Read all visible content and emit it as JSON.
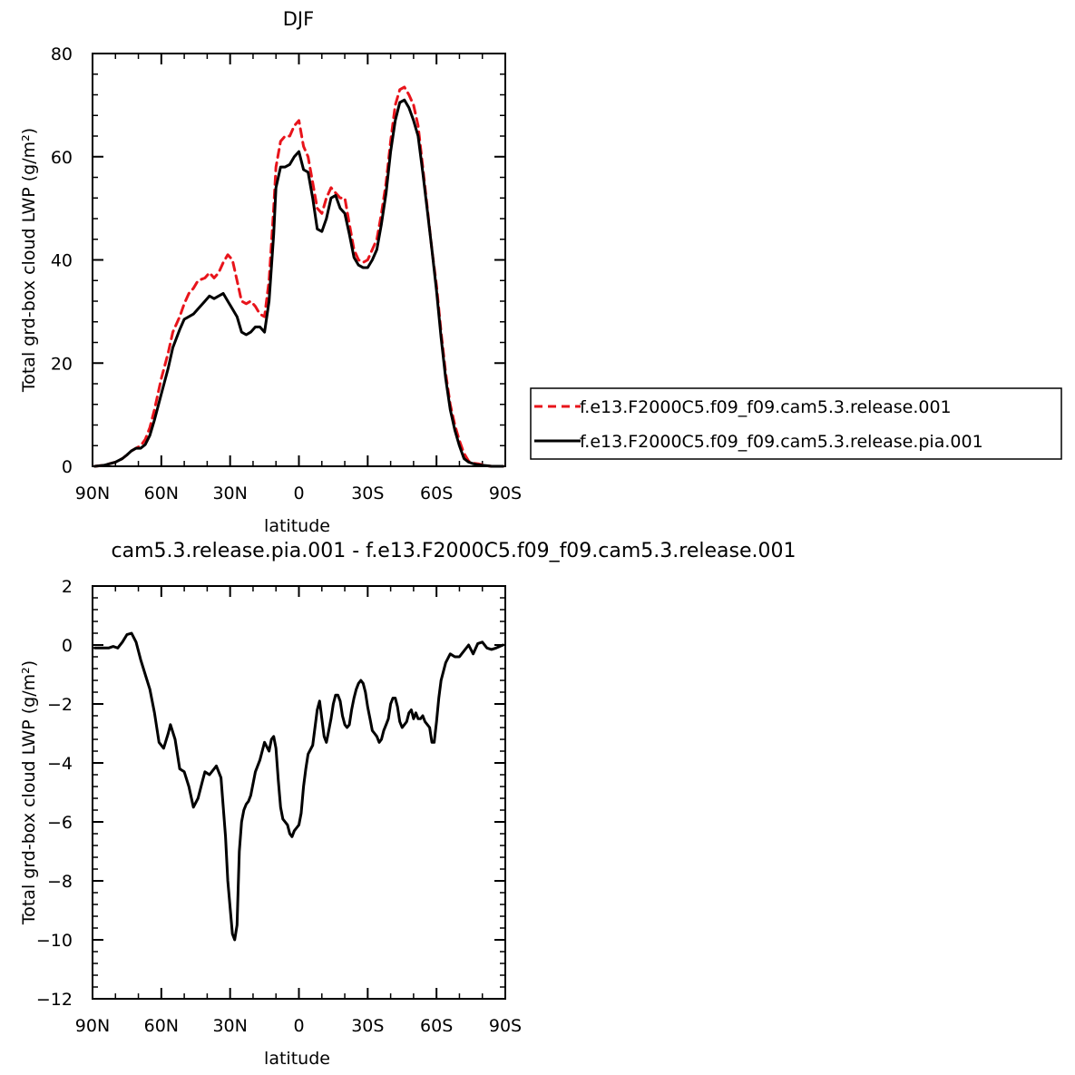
{
  "chart_data": [
    {
      "type": "line",
      "title": "DJF",
      "xlabel": "latitude",
      "ylabel": "Total grd-box cloud LWP (g/m²)",
      "xlim": [
        90,
        -90
      ],
      "ylim": [
        0,
        80
      ],
      "x_ticks": [
        90,
        60,
        30,
        0,
        -30,
        -60,
        -90
      ],
      "x_tick_labels": [
        "90N",
        "60N",
        "30N",
        "0",
        "30S",
        "60S",
        "90S"
      ],
      "y_ticks": [
        0,
        20,
        40,
        60,
        80
      ],
      "y_tick_labels": [
        "0",
        "20",
        "40",
        "60",
        "80"
      ],
      "legend_position": "right",
      "series": [
        {
          "name": "f.e13.F2000C5.f09_f09.cam5.3.release.001",
          "color": "#e8141b",
          "dash": "dashed",
          "x": [
            89,
            85,
            80,
            77,
            75,
            73,
            71,
            69,
            67,
            65,
            63,
            60,
            57,
            55,
            52,
            50,
            48,
            46,
            44,
            41,
            39,
            37,
            35,
            33,
            31,
            29,
            27,
            25,
            23,
            21,
            19,
            17,
            15,
            13,
            11,
            10,
            8,
            6,
            4,
            2,
            0,
            -2,
            -4,
            -6,
            -8,
            -10,
            -12,
            -14,
            -16,
            -18,
            -20,
            -22,
            -24,
            -26,
            -28,
            -30,
            -32,
            -34,
            -36,
            -38,
            -40,
            -42,
            -44,
            -46,
            -48,
            -50,
            -52,
            -54,
            -56,
            -58,
            -60,
            -62,
            -64,
            -66,
            -68,
            -70,
            -72,
            -74,
            -76,
            -78,
            -80,
            -82,
            -84,
            -86,
            -89
          ],
          "y": [
            0,
            0.2,
            0.8,
            1.5,
            2.2,
            3,
            3.5,
            4,
            5.2,
            7.5,
            11,
            17,
            22,
            26,
            29,
            31.5,
            33.5,
            34.5,
            36,
            36.5,
            37.5,
            36.5,
            37.5,
            39.5,
            41,
            40,
            36,
            32,
            31.5,
            32,
            31,
            29.5,
            29,
            36,
            50,
            58,
            63,
            64,
            64,
            66,
            67,
            62,
            60,
            55,
            50,
            49,
            52,
            54,
            53,
            52,
            52,
            47,
            42,
            40,
            39.5,
            40,
            42,
            44,
            49,
            55,
            63,
            70,
            73,
            73.5,
            72,
            70,
            66,
            58,
            50,
            42,
            35,
            26,
            18,
            12,
            8,
            5,
            2.5,
            1,
            0.6,
            0.5,
            0.3,
            0.1,
            0,
            0,
            0
          ]
        },
        {
          "name": "f.e13.F2000C5.f09_f09.cam5.3.release.pia.001",
          "color": "#000000",
          "dash": "solid",
          "x": [
            89,
            85,
            80,
            77,
            75,
            73,
            71,
            69,
            67,
            65,
            63,
            60,
            57,
            55,
            52,
            50,
            48,
            46,
            44,
            41,
            39,
            37,
            35,
            33,
            31,
            29,
            27,
            25,
            23,
            21,
            19,
            17,
            15,
            13,
            11,
            10,
            8,
            6,
            4,
            2,
            0,
            -2,
            -4,
            -6,
            -8,
            -10,
            -12,
            -14,
            -16,
            -18,
            -20,
            -22,
            -24,
            -26,
            -28,
            -30,
            -32,
            -34,
            -36,
            -38,
            -40,
            -42,
            -44,
            -46,
            -48,
            -50,
            -52,
            -54,
            -56,
            -58,
            -60,
            -62,
            -64,
            -66,
            -68,
            -70,
            -72,
            -74,
            -76,
            -78,
            -80,
            -82,
            -84,
            -86,
            -89
          ],
          "y": [
            0,
            0.2,
            0.8,
            1.5,
            2.2,
            3,
            3.5,
            3.5,
            4.2,
            6,
            9,
            14,
            19,
            23,
            26.5,
            28.5,
            29,
            29.5,
            30.5,
            32,
            33,
            32.5,
            33,
            33.5,
            32,
            30.5,
            29,
            26,
            25.5,
            26,
            27,
            27,
            26,
            32,
            45,
            54,
            58,
            58,
            58.5,
            60,
            61,
            57.5,
            57,
            52,
            46,
            45.5,
            48,
            52,
            52.5,
            50,
            49,
            45,
            40.5,
            39,
            38.5,
            38.5,
            40,
            42,
            47,
            53,
            61,
            67,
            70.5,
            71,
            69.5,
            67,
            64,
            57,
            49.5,
            42,
            34,
            25,
            17,
            11,
            7,
            4,
            1.5,
            0.8,
            0.5,
            0.3,
            0.2,
            0.1,
            0,
            0,
            0
          ]
        }
      ]
    },
    {
      "type": "line",
      "title": "cam5.3.release.pia.001 - f.e13.F2000C5.f09_f09.cam5.3.release.001",
      "xlabel": "latitude",
      "ylabel": "Total grd-box cloud LWP (g/m²)",
      "xlim": [
        90,
        -90
      ],
      "ylim": [
        -12,
        2
      ],
      "x_ticks": [
        90,
        60,
        30,
        0,
        -30,
        -60,
        -90
      ],
      "x_tick_labels": [
        "90N",
        "60N",
        "30N",
        "0",
        "30S",
        "60S",
        "90S"
      ],
      "y_ticks": [
        -12,
        -10,
        -8,
        -6,
        -4,
        -2,
        0,
        2
      ],
      "y_tick_labels": [
        "−12",
        "−10",
        "−8",
        "−6",
        "−4",
        "−2",
        "0",
        "2"
      ],
      "series": [
        {
          "color": "#000000",
          "dash": "solid",
          "x": [
            89,
            86,
            83,
            81,
            79,
            77,
            75,
            73,
            71,
            69,
            67,
            65,
            63,
            61,
            59,
            57,
            56,
            54,
            52,
            50,
            48,
            46,
            44,
            42,
            41,
            39,
            37,
            36,
            34,
            32,
            31,
            29,
            28,
            27,
            26,
            25,
            24,
            23,
            22,
            21,
            19,
            17,
            15,
            13,
            12,
            11,
            10,
            9,
            8,
            7,
            6,
            5,
            4,
            3,
            2,
            1,
            0,
            -1,
            -2,
            -3,
            -4,
            -6,
            -8,
            -9,
            -10,
            -11,
            -12,
            -13,
            -14,
            -15,
            -16,
            -17,
            -18,
            -19,
            -20,
            -21,
            -22,
            -23,
            -24,
            -25,
            -26,
            -27,
            -28,
            -29,
            -30,
            -31,
            -32,
            -33,
            -34,
            -35,
            -36,
            -37,
            -38,
            -39,
            -40,
            -41,
            -42,
            -43,
            -44,
            -45,
            -46,
            -47,
            -48,
            -49,
            -50,
            -51,
            -52,
            -53,
            -54,
            -55,
            -56,
            -57,
            -58,
            -59,
            -60,
            -61,
            -62,
            -64,
            -66,
            -68,
            -70,
            -72,
            -74,
            -76,
            -78,
            -80,
            -82,
            -84,
            -86,
            -89
          ],
          "y": [
            -0.1,
            -0.1,
            -0.1,
            -0.05,
            -0.1,
            0.1,
            0.35,
            0.4,
            0.1,
            -0.5,
            -1,
            -1.5,
            -2.3,
            -3.3,
            -3.5,
            -3,
            -2.7,
            -3.2,
            -4.2,
            -4.3,
            -4.8,
            -5.5,
            -5.2,
            -4.6,
            -4.3,
            -4.4,
            -4.2,
            -4.1,
            -4.5,
            -6.5,
            -8,
            -9.8,
            -10,
            -9.5,
            -7,
            -6,
            -5.6,
            -5.4,
            -5.3,
            -5.1,
            -4.3,
            -3.9,
            -3.3,
            -3.6,
            -3.2,
            -3.1,
            -3.5,
            -4.6,
            -5.5,
            -5.9,
            -6,
            -6.1,
            -6.4,
            -6.5,
            -6.3,
            -6.2,
            -6.1,
            -5.7,
            -4.8,
            -4.2,
            -3.7,
            -3.4,
            -2.2,
            -1.9,
            -2.5,
            -3.1,
            -3.3,
            -2.9,
            -2.5,
            -2,
            -1.7,
            -1.7,
            -1.9,
            -2.4,
            -2.7,
            -2.8,
            -2.7,
            -2.2,
            -1.8,
            -1.5,
            -1.3,
            -1.2,
            -1.3,
            -1.6,
            -2.1,
            -2.5,
            -2.9,
            -3,
            -3.1,
            -3.3,
            -3.2,
            -2.9,
            -2.7,
            -2.5,
            -2,
            -1.8,
            -1.8,
            -2.1,
            -2.6,
            -2.8,
            -2.7,
            -2.6,
            -2.3,
            -2.2,
            -2.5,
            -2.3,
            -2.5,
            -2.5,
            -2.4,
            -2.6,
            -2.7,
            -2.8,
            -3.3,
            -3.3,
            -2.6,
            -1.8,
            -1.2,
            -0.6,
            -0.3,
            -0.4,
            -0.4,
            -0.2,
            0,
            -0.3,
            0.05,
            0.1,
            -0.1,
            -0.15,
            -0.1,
            0
          ]
        }
      ]
    }
  ]
}
